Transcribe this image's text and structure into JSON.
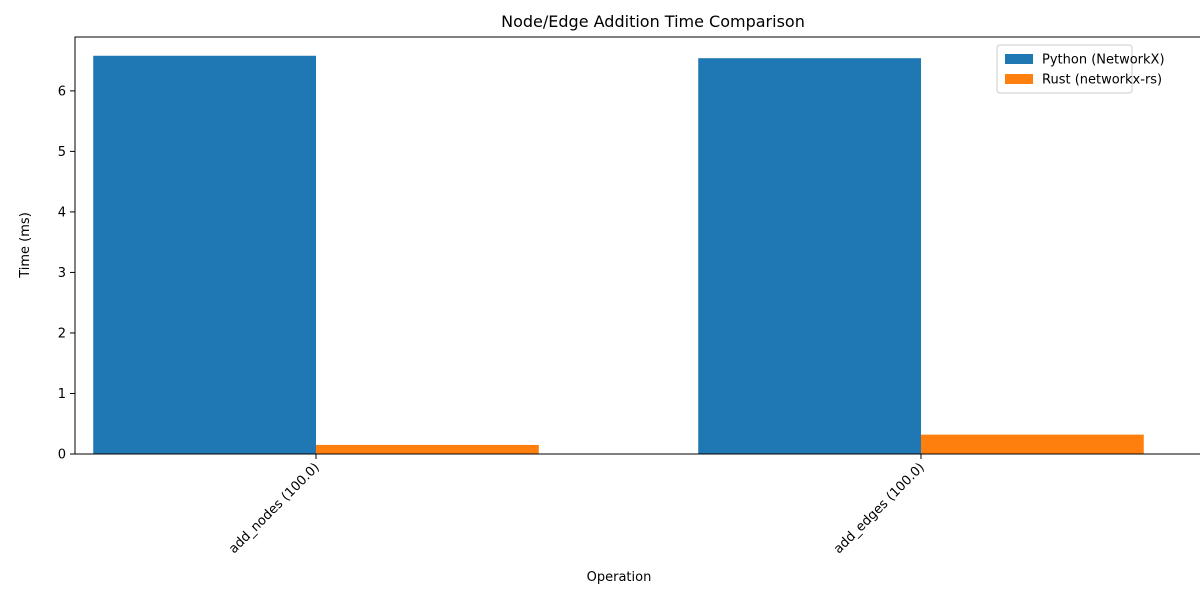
{
  "chart_data": {
    "type": "bar",
    "title": "Node/Edge Addition Time Comparison",
    "xlabel": "Operation",
    "ylabel": "Time (ms)",
    "categories": [
      "add_nodes (100.0)",
      "add_edges (100.0)"
    ],
    "series": [
      {
        "name": "Python (NetworkX)",
        "color": "#1f77b4",
        "values": [
          6.58,
          6.54
        ]
      },
      {
        "name": "Rust (networkx-rs)",
        "color": "#ff7f0e",
        "values": [
          0.15,
          0.32
        ]
      }
    ],
    "ylim": [
      0,
      6.89
    ],
    "yticks": [
      0,
      1,
      2,
      3,
      4,
      5,
      6
    ],
    "xtick_rotation": 45,
    "legend_position": "top-right",
    "grid": false
  }
}
